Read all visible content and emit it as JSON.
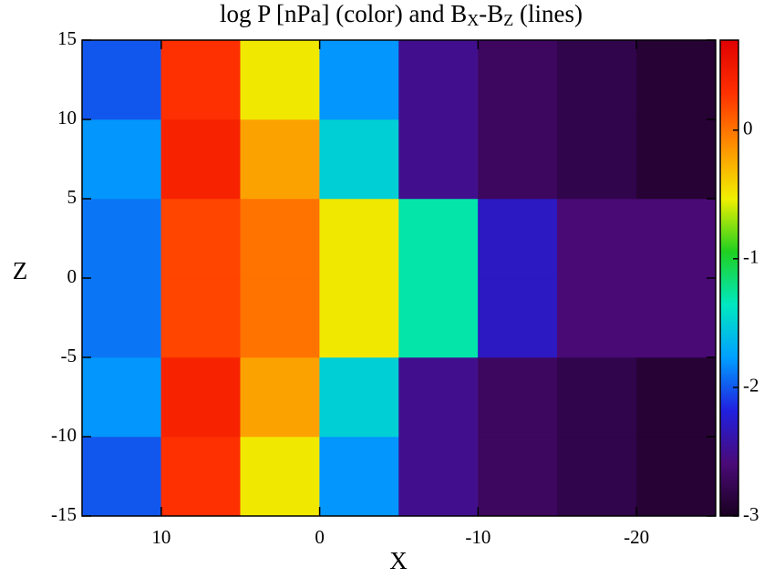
{
  "chart_data": {
    "type": "heatmap",
    "title_parts": [
      "log P [nPa] (color) and B",
      "X",
      "-B",
      "Z",
      " (lines)"
    ],
    "xlabel": "X",
    "ylabel": "Z",
    "x_edges": [
      15,
      10,
      5,
      0,
      -5,
      -10,
      -15,
      -20,
      -25
    ],
    "z_edges": [
      -15,
      -10,
      -5,
      0,
      5,
      10,
      15
    ],
    "values": [
      [
        -2.0,
        0.3,
        -0.5,
        -1.8,
        -2.5,
        -2.7,
        -2.8,
        -2.9
      ],
      [
        -1.8,
        0.4,
        -0.2,
        -1.5,
        -2.5,
        -2.7,
        -2.8,
        -2.9
      ],
      [
        -1.9,
        0.2,
        0.0,
        -0.5,
        -1.3,
        -2.3,
        -2.6,
        -2.6
      ],
      [
        -1.9,
        0.2,
        0.0,
        -0.5,
        -1.3,
        -2.3,
        -2.6,
        -2.6
      ],
      [
        -1.8,
        0.4,
        -0.2,
        -1.5,
        -2.5,
        -2.7,
        -2.8,
        -2.9
      ],
      [
        -2.0,
        0.3,
        -0.5,
        -1.8,
        -2.5,
        -2.7,
        -2.8,
        -2.9
      ]
    ],
    "xlim": [
      15,
      -25
    ],
    "ylim": [
      -15,
      15
    ],
    "xticks": [
      10,
      0,
      -10,
      -20
    ],
    "yticks": [
      -15,
      -10,
      -5,
      0,
      5,
      10,
      15
    ],
    "clim": [
      -3,
      0.7
    ],
    "cticks": [
      -3,
      -2,
      -1,
      0
    ],
    "colormap": [
      "#1a0020",
      "#4a0a78",
      "#2020e0",
      "#00a0ff",
      "#00e8c0",
      "#20d020",
      "#f0f000",
      "#ff9000",
      "#ff3000",
      "#e00000"
    ]
  }
}
